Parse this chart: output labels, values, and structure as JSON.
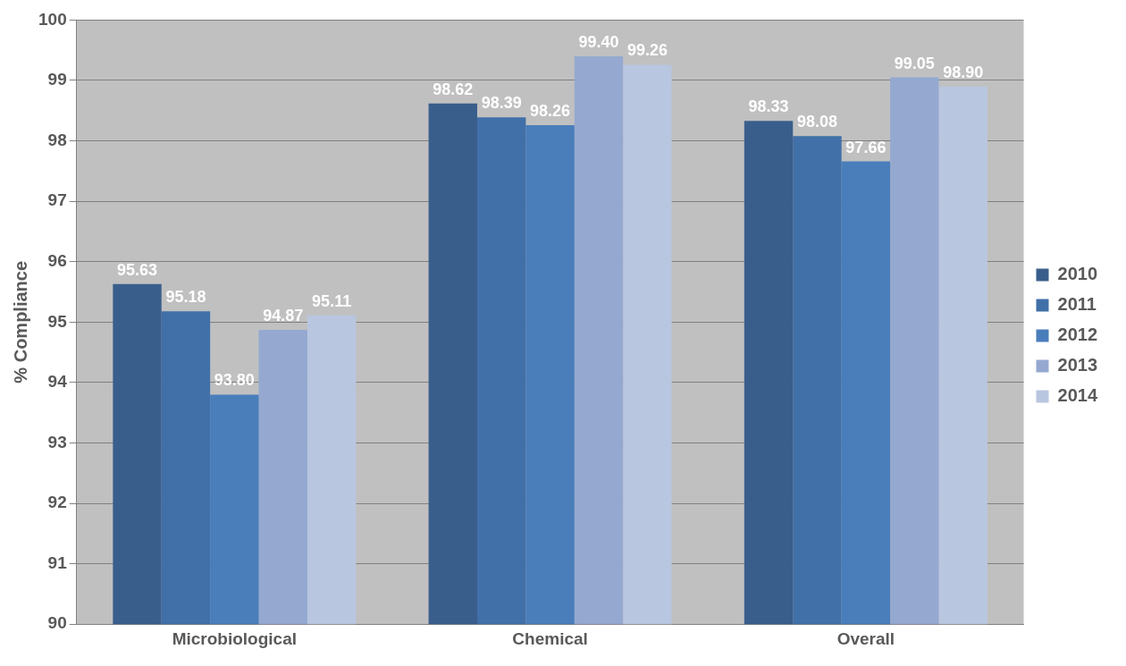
{
  "chart_data": {
    "type": "bar",
    "ylabel": "% Compliance",
    "categories": [
      "Microbiological",
      "Chemical",
      "Overall"
    ],
    "series": [
      {
        "name": "2010",
        "color": "#3a5e8c",
        "values": [
          95.63,
          98.62,
          98.33
        ]
      },
      {
        "name": "2011",
        "color": "#4170a8",
        "values": [
          95.18,
          98.39,
          98.08
        ]
      },
      {
        "name": "2012",
        "color": "#4a7ebb",
        "values": [
          93.8,
          98.26,
          97.66
        ]
      },
      {
        "name": "2013",
        "color": "#95a9d0",
        "values": [
          94.87,
          99.4,
          99.05
        ]
      },
      {
        "name": "2014",
        "color": "#b9c6e0",
        "values": [
          95.11,
          99.26,
          98.9
        ]
      }
    ],
    "value_labels": [
      [
        "95.63",
        "98.62",
        "98.33"
      ],
      [
        "95.18",
        "98.39",
        "98.08"
      ],
      [
        "93.80",
        "98.26",
        "97.66"
      ],
      [
        "94.87",
        "99.40",
        "99.05"
      ],
      [
        "95.11",
        "99.26",
        "98.90"
      ]
    ],
    "ylim": [
      90,
      100
    ],
    "yticks": [
      90,
      91,
      92,
      93,
      94,
      95,
      96,
      97,
      98,
      99,
      100
    ],
    "grid": "y",
    "legend": "right"
  }
}
